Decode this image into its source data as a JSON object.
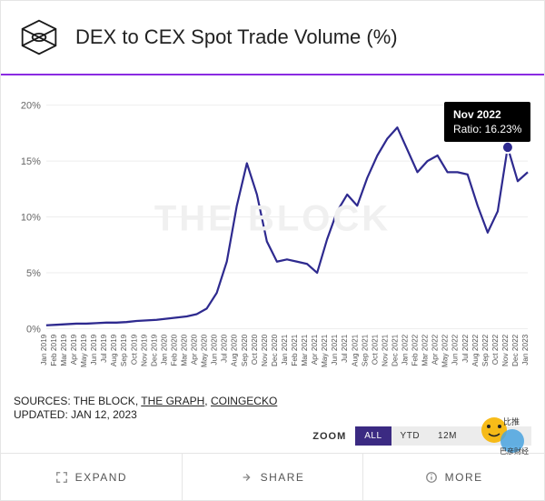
{
  "header": {
    "title": "DEX to CEX Spot Trade Volume (%)",
    "accent_color": "#8a2be2",
    "logo_stroke": "#1a1a1a"
  },
  "chart": {
    "type": "line",
    "background_color": "#ffffff",
    "grid_color": "#eeeeee",
    "axis_color": "#cccccc",
    "line_color": "#2e2a8f",
    "line_width": 2.2,
    "watermark_text": "THE BLOCK",
    "watermark_color": "#f0f0f0",
    "ylim": [
      0,
      21
    ],
    "y_ticks": [
      0,
      5,
      10,
      15,
      20
    ],
    "y_tick_suffix": "%",
    "x_labels": [
      "Jan 2019",
      "Feb 2019",
      "Mar 2019",
      "Apr 2019",
      "May 2019",
      "Jun 2019",
      "Jul 2019",
      "Aug 2019",
      "Sep 2019",
      "Oct 2019",
      "Nov 2019",
      "Dec 2019",
      "Jan 2020",
      "Feb 2020",
      "Mar 2020",
      "Apr 2020",
      "May 2020",
      "Jun 2020",
      "Jul 2020",
      "Aug 2020",
      "Sep 2020",
      "Oct 2020",
      "Nov 2020",
      "Dec 2020",
      "Jan 2021",
      "Feb 2021",
      "Mar 2021",
      "Apr 2021",
      "May 2021",
      "Jun 2021",
      "Jul 2021",
      "Aug 2021",
      "Sep 2021",
      "Oct 2021",
      "Nov 2021",
      "Dec 2021",
      "Jan 2022",
      "Feb 2022",
      "Mar 2022",
      "Apr 2022",
      "May 2022",
      "Jun 2022",
      "Jul 2022",
      "Aug 2022",
      "Sep 2022",
      "Oct 2022",
      "Nov 2022",
      "Dec 2022",
      "Jan 2023"
    ],
    "values": [
      0.3,
      0.35,
      0.4,
      0.45,
      0.45,
      0.5,
      0.55,
      0.55,
      0.6,
      0.7,
      0.75,
      0.8,
      0.9,
      1.0,
      1.1,
      1.3,
      1.8,
      3.2,
      6.0,
      11.0,
      14.8,
      12.0,
      7.8,
      6.0,
      6.2,
      6.0,
      5.8,
      5.0,
      8.0,
      10.5,
      12.0,
      11.0,
      13.5,
      15.5,
      17.0,
      18.0,
      16.0,
      14.0,
      15.0,
      15.5,
      14.0,
      14.0,
      13.8,
      11.0,
      8.6,
      10.5,
      16.23,
      13.2,
      14.0
    ],
    "tooltip": {
      "index": 46,
      "lines": [
        "Nov 2022",
        "Ratio: 16.23%"
      ],
      "bg": "#000000",
      "fg": "#ffffff",
      "marker_fill": "#2e2a8f",
      "marker_stroke": "#ffffff"
    }
  },
  "sources": {
    "prefix": "SOURCES: ",
    "items": [
      "THE BLOCK",
      "THE GRAPH",
      "COINGECKO"
    ],
    "underlined": [
      false,
      true,
      true
    ],
    "updated_label": "UPDATED: JAN 12, 2023"
  },
  "zoom": {
    "label": "ZOOM",
    "options": [
      "ALL",
      "YTD",
      "12M",
      "",
      ""
    ],
    "active_index": 0,
    "active_bg": "#3b2a82",
    "inactive_bg": "#ececec"
  },
  "footer": {
    "expand": "EXPAND",
    "share": "SHARE",
    "more": "MORE"
  },
  "overlay_badge": {
    "text1": "比推",
    "text2": "巴彦财经",
    "color1": "#f7b500",
    "color2": "#4aa3df"
  }
}
